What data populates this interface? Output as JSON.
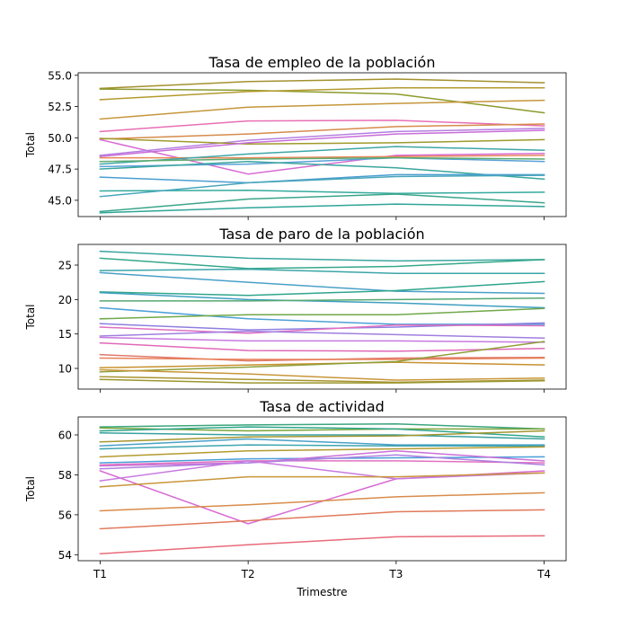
{
  "chart_data": [
    {
      "type": "line",
      "title": "Tasa de empleo de la población",
      "xlabel": "",
      "ylabel": "Total",
      "ylim": [
        43.7,
        55.2
      ],
      "yticks": [
        "45.0",
        "47.5",
        "50.0",
        "52.5",
        "55.0"
      ],
      "categories": [
        "T1",
        "T2",
        "T3",
        "T4"
      ],
      "series": [
        {
          "color": "#a3912f",
          "values": [
            53.95,
            54.5,
            54.7,
            54.4
          ]
        },
        {
          "color": "#8c9a2c",
          "values": [
            53.9,
            53.8,
            53.5,
            52.0
          ]
        },
        {
          "color": "#b39a2f",
          "values": [
            53.05,
            53.7,
            54.0,
            54.0
          ]
        },
        {
          "color": "#c5963a",
          "values": [
            51.5,
            52.45,
            52.75,
            53.0
          ]
        },
        {
          "color": "#e86fb5",
          "values": [
            50.5,
            51.35,
            51.4,
            50.95
          ]
        },
        {
          "color": "#d68b4b",
          "values": [
            49.9,
            50.3,
            50.9,
            51.1
          ]
        },
        {
          "color": "#d86bd4",
          "values": [
            49.85,
            47.1,
            48.6,
            48.75
          ]
        },
        {
          "color": "#b47fe0",
          "values": [
            48.6,
            49.8,
            50.5,
            50.75
          ]
        },
        {
          "color": "#9f9a2c",
          "values": [
            49.95,
            49.5,
            49.6,
            49.85
          ]
        },
        {
          "color": "#c86dd9",
          "values": [
            48.5,
            49.6,
            50.3,
            50.6
          ]
        },
        {
          "color": "#e78757",
          "values": [
            48.4,
            48.4,
            48.5,
            48.6
          ]
        },
        {
          "color": "#3fa6a6",
          "values": [
            47.9,
            48.7,
            49.3,
            49.0
          ]
        },
        {
          "color": "#5aa0d6",
          "values": [
            47.7,
            47.9,
            48.4,
            48.1
          ]
        },
        {
          "color": "#5cab70",
          "values": [
            48.1,
            48.3,
            48.4,
            48.3
          ]
        },
        {
          "color": "#3aa59e",
          "values": [
            47.5,
            48.1,
            47.6,
            46.7
          ]
        },
        {
          "color": "#4a9ed0",
          "values": [
            46.85,
            46.4,
            47.05,
            47.05
          ]
        },
        {
          "color": "#35aa9d",
          "values": [
            45.75,
            45.8,
            45.55,
            45.65
          ]
        },
        {
          "color": "#48a6bb",
          "values": [
            45.3,
            46.4,
            46.9,
            47.0
          ]
        },
        {
          "color": "#3aa58a",
          "values": [
            44.1,
            45.1,
            45.5,
            44.8
          ]
        },
        {
          "color": "#2fa598",
          "values": [
            44.0,
            44.4,
            44.7,
            44.5
          ]
        }
      ]
    },
    {
      "type": "line",
      "title": "Tasa de paro de la población",
      "xlabel": "",
      "ylabel": "Total",
      "ylim": [
        7.0,
        28.0
      ],
      "yticks": [
        "10",
        "15",
        "20",
        "25"
      ],
      "categories": [
        "T1",
        "T2",
        "T3",
        "T4"
      ],
      "series": [
        {
          "color": "#3aa5a0",
          "values": [
            27.0,
            26.0,
            25.6,
            25.8
          ]
        },
        {
          "color": "#35a88a",
          "values": [
            26.0,
            24.5,
            24.8,
            25.8
          ]
        },
        {
          "color": "#3ba5a8",
          "values": [
            24.2,
            24.4,
            23.8,
            23.8
          ]
        },
        {
          "color": "#4aa0c8",
          "values": [
            23.9,
            22.5,
            21.2,
            20.9
          ]
        },
        {
          "color": "#2fa58c",
          "values": [
            21.1,
            20.6,
            21.3,
            22.6
          ]
        },
        {
          "color": "#3e9ec0",
          "values": [
            21.0,
            20.0,
            19.5,
            18.8
          ]
        },
        {
          "color": "#56a870",
          "values": [
            19.8,
            19.8,
            20.0,
            20.2
          ]
        },
        {
          "color": "#4da0d8",
          "values": [
            18.8,
            17.2,
            16.4,
            16.4
          ]
        },
        {
          "color": "#70a84a",
          "values": [
            17.2,
            17.8,
            17.8,
            18.7
          ]
        },
        {
          "color": "#8e7fe0",
          "values": [
            16.5,
            15.6,
            16.0,
            16.6
          ]
        },
        {
          "color": "#e070c0",
          "values": [
            16.0,
            15.1,
            16.3,
            16.2
          ]
        },
        {
          "color": "#a07ee0",
          "values": [
            14.7,
            15.4,
            14.9,
            14.4
          ]
        },
        {
          "color": "#c77ae0",
          "values": [
            14.5,
            14.0,
            14.0,
            13.8
          ]
        },
        {
          "color": "#e069b8",
          "values": [
            13.7,
            12.6,
            12.5,
            12.9
          ]
        },
        {
          "color": "#e07a6a",
          "values": [
            12.0,
            11.1,
            11.5,
            11.6
          ]
        },
        {
          "color": "#e8805a",
          "values": [
            11.5,
            11.3,
            11.3,
            11.5
          ]
        },
        {
          "color": "#c8902f",
          "values": [
            10.1,
            10.5,
            10.9,
            10.5
          ]
        },
        {
          "color": "#8ea03a",
          "values": [
            9.5,
            10.2,
            11.0,
            13.9
          ]
        },
        {
          "color": "#a8942f",
          "values": [
            8.8,
            8.4,
            8.0,
            8.3
          ]
        },
        {
          "color": "#c8963a",
          "values": [
            9.8,
            9.2,
            8.3,
            8.6
          ]
        },
        {
          "color": "#9a962f",
          "values": [
            8.4,
            7.9,
            7.9,
            8.2
          ]
        }
      ]
    },
    {
      "type": "line",
      "title": "Tasa de actividad",
      "xlabel": "Trimestre",
      "ylabel": "Total",
      "ylim": [
        53.7,
        60.9
      ],
      "yticks": [
        "54",
        "56",
        "58",
        "60"
      ],
      "categories": [
        "T1",
        "T2",
        "T3",
        "T4"
      ],
      "series": [
        {
          "color": "#3aa57c",
          "values": [
            60.4,
            60.5,
            60.55,
            60.3
          ]
        },
        {
          "color": "#7aa53a",
          "values": [
            60.35,
            60.2,
            60.3,
            60.3
          ]
        },
        {
          "color": "#2fa58a",
          "values": [
            60.2,
            60.4,
            60.3,
            59.9
          ]
        },
        {
          "color": "#3aa0a0",
          "values": [
            60.1,
            60.0,
            60.0,
            59.8
          ]
        },
        {
          "color": "#a3962f",
          "values": [
            59.65,
            59.9,
            59.95,
            60.2
          ]
        },
        {
          "color": "#4aa0c8",
          "values": [
            59.45,
            59.8,
            59.5,
            59.5
          ]
        },
        {
          "color": "#3ea5b0",
          "values": [
            59.3,
            59.5,
            59.45,
            59.45
          ]
        },
        {
          "color": "#b39a2f",
          "values": [
            58.9,
            59.2,
            59.3,
            59.4
          ]
        },
        {
          "color": "#4a9ed8",
          "values": [
            58.6,
            58.8,
            58.85,
            58.9
          ]
        },
        {
          "color": "#c870d8",
          "values": [
            58.45,
            58.6,
            59.2,
            58.7
          ]
        },
        {
          "color": "#e072c0",
          "values": [
            58.5,
            58.7,
            58.7,
            58.6
          ]
        },
        {
          "color": "#b080e0",
          "values": [
            58.3,
            58.6,
            59.0,
            58.5
          ]
        },
        {
          "color": "#d86bd4",
          "values": [
            58.2,
            55.55,
            57.8,
            58.2
          ]
        },
        {
          "color": "#c87ae0",
          "values": [
            57.7,
            58.7,
            57.8,
            58.1
          ]
        },
        {
          "color": "#c8963a",
          "values": [
            57.4,
            57.9,
            57.9,
            58.1
          ]
        },
        {
          "color": "#d88b4b",
          "values": [
            56.2,
            56.5,
            56.9,
            57.1
          ]
        },
        {
          "color": "#e07a5a",
          "values": [
            55.3,
            55.7,
            56.15,
            56.25
          ]
        },
        {
          "color": "#e86a7a",
          "values": [
            54.05,
            54.5,
            54.9,
            54.95
          ]
        }
      ]
    }
  ]
}
